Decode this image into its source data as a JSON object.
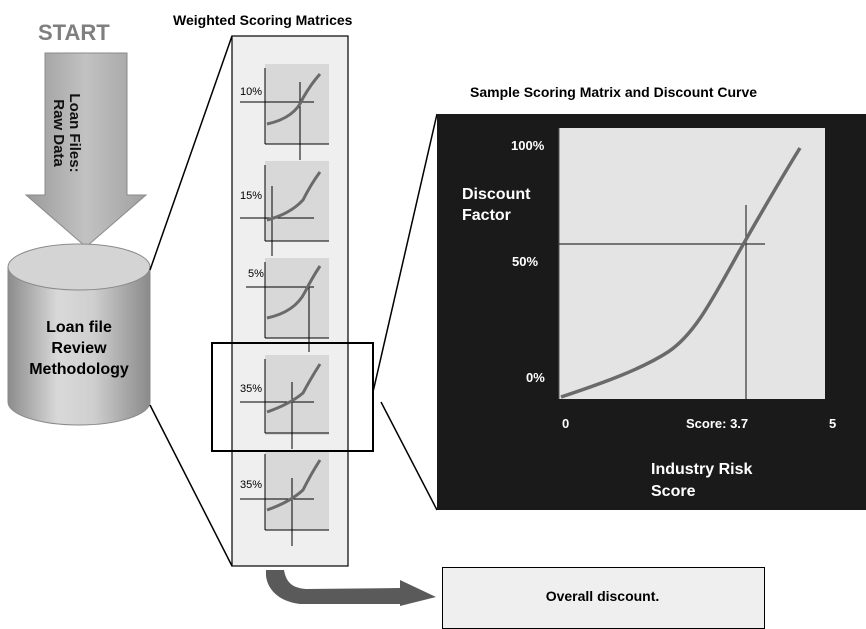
{
  "start": {
    "label": "START"
  },
  "input": {
    "label_line1": "Loan Files:",
    "label_line2": "Raw Data"
  },
  "methodology": {
    "line1": "Loan file",
    "line2": "Review",
    "line3": "Methodology"
  },
  "matrices": {
    "title": "Weighted Scoring Matrices",
    "weights": [
      "10%",
      "15%",
      "5%",
      "35%",
      "35%"
    ]
  },
  "sample": {
    "title": "Sample Scoring Matrix and Discount Curve",
    "y_label_line1": "Discount",
    "y_label_line2": "Factor",
    "y_ticks": [
      "100%",
      "50%",
      "0%"
    ],
    "x_ticks": [
      "0",
      "Score: 3.7",
      "5"
    ],
    "x_label_line1": "Industry Risk",
    "x_label_line2": "Score"
  },
  "result": {
    "label": "Overall discount."
  },
  "colors": {
    "panel": "#1a1a1a",
    "plot_area": "#e4e4e4",
    "curve": "#6a6a6a",
    "arrow": "#a8a8a8"
  }
}
